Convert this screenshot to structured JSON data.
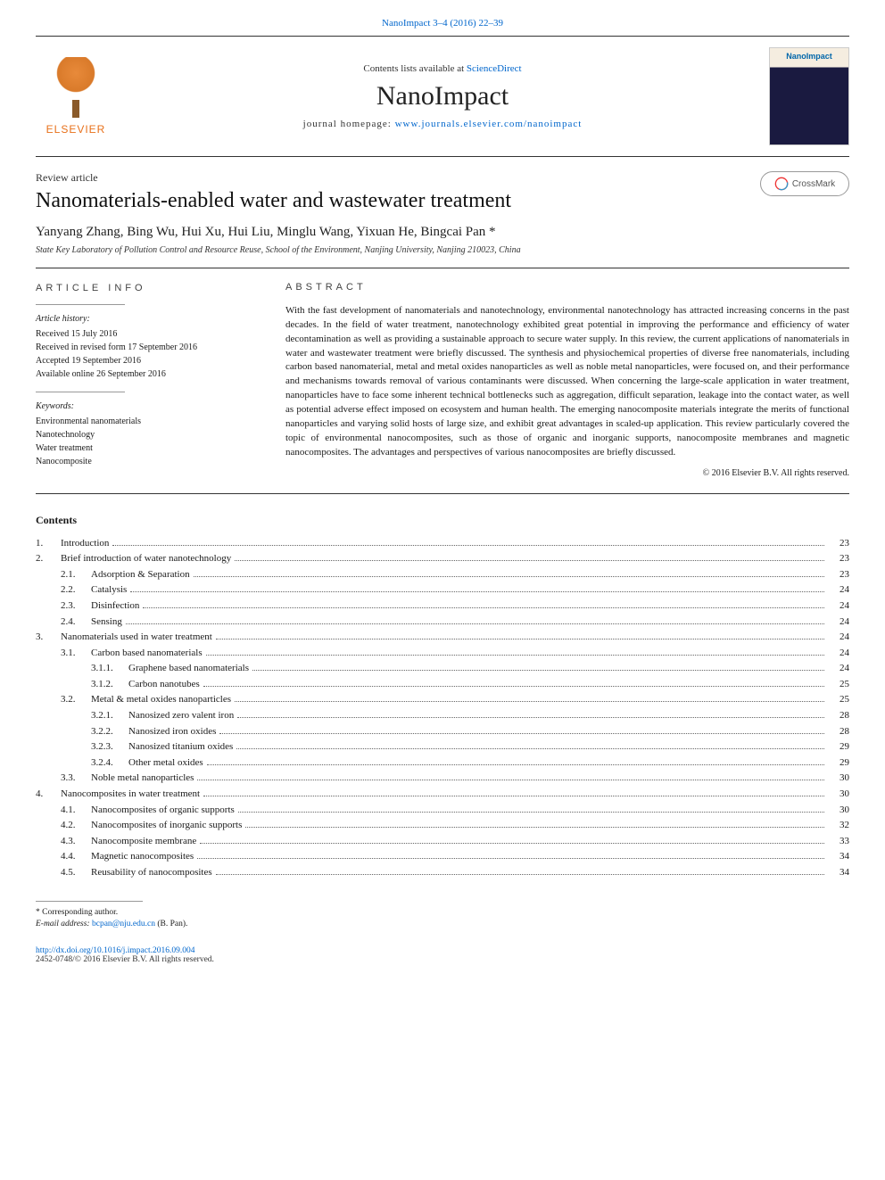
{
  "header": {
    "running_head": "NanoImpact 3–4 (2016) 22–39",
    "contents_line_prefix": "Contents lists available at ",
    "contents_line_link": "ScienceDirect",
    "journal_title": "NanoImpact",
    "homepage_prefix": "journal homepage: ",
    "homepage_url": "www.journals.elsevier.com/nanoimpact",
    "publisher_name": "ELSEVIER",
    "cover_label": "NanoImpact"
  },
  "article": {
    "type": "Review article",
    "title": "Nanomaterials-enabled water and wastewater treatment",
    "authors": "Yanyang Zhang, Bing Wu, Hui Xu, Hui Liu, Minglu Wang, Yixuan He, Bingcai Pan *",
    "affiliation": "State Key Laboratory of Pollution Control and Resource Reuse, School of the Environment, Nanjing University, Nanjing 210023, China",
    "crossmark_label": "CrossMark"
  },
  "article_info": {
    "heading": "ARTICLE INFO",
    "history_label": "Article history:",
    "history_lines": [
      "Received 15 July 2016",
      "Received in revised form 17 September 2016",
      "Accepted 19 September 2016",
      "Available online 26 September 2016"
    ],
    "keywords_label": "Keywords:",
    "keywords": [
      "Environmental nanomaterials",
      "Nanotechnology",
      "Water treatment",
      "Nanocomposite"
    ]
  },
  "abstract": {
    "heading": "ABSTRACT",
    "text": "With the fast development of nanomaterials and nanotechnology, environmental nanotechnology has attracted increasing concerns in the past decades. In the field of water treatment, nanotechnology exhibited great potential in improving the performance and efficiency of water decontamination as well as providing a sustainable approach to secure water supply. In this review, the current applications of nanomaterials in water and wastewater treatment were briefly discussed. The synthesis and physiochemical properties of diverse free nanomaterials, including carbon based nanomaterial, metal and metal oxides nanoparticles as well as noble metal nanoparticles, were focused on, and their performance and mechanisms towards removal of various contaminants were discussed. When concerning the large-scale application in water treatment, nanoparticles have to face some inherent technical bottlenecks such as aggregation, difficult separation, leakage into the contact water, as well as potential adverse effect imposed on ecosystem and human health. The emerging nanocomposite materials integrate the merits of functional nanoparticles and varying solid hosts of large size, and exhibit great advantages in scaled-up application. This review particularly covered the topic of environmental nanocomposites, such as those of organic and inorganic supports, nanocomposite membranes and magnetic nanocomposites. The advantages and perspectives of various nanocomposites are briefly discussed.",
    "copyright": "© 2016 Elsevier B.V. All rights reserved."
  },
  "contents": {
    "heading": "Contents",
    "items": [
      {
        "level": 1,
        "num": "1.",
        "title": "Introduction",
        "page": "23"
      },
      {
        "level": 1,
        "num": "2.",
        "title": "Brief introduction of water nanotechnology",
        "page": "23"
      },
      {
        "level": 2,
        "num": "2.1.",
        "title": "Adsorption & Separation",
        "page": "23"
      },
      {
        "level": 2,
        "num": "2.2.",
        "title": "Catalysis",
        "page": "24"
      },
      {
        "level": 2,
        "num": "2.3.",
        "title": "Disinfection",
        "page": "24"
      },
      {
        "level": 2,
        "num": "2.4.",
        "title": "Sensing",
        "page": "24"
      },
      {
        "level": 1,
        "num": "3.",
        "title": "Nanomaterials used in water treatment",
        "page": "24"
      },
      {
        "level": 2,
        "num": "3.1.",
        "title": "Carbon based nanomaterials",
        "page": "24"
      },
      {
        "level": 3,
        "num": "3.1.1.",
        "title": "Graphene based nanomaterials",
        "page": "24"
      },
      {
        "level": 3,
        "num": "3.1.2.",
        "title": "Carbon nanotubes",
        "page": "25"
      },
      {
        "level": 2,
        "num": "3.2.",
        "title": "Metal & metal oxides nanoparticles",
        "page": "25"
      },
      {
        "level": 3,
        "num": "3.2.1.",
        "title": "Nanosized zero valent iron",
        "page": "28"
      },
      {
        "level": 3,
        "num": "3.2.2.",
        "title": "Nanosized iron oxides",
        "page": "28"
      },
      {
        "level": 3,
        "num": "3.2.3.",
        "title": "Nanosized titanium oxides",
        "page": "29"
      },
      {
        "level": 3,
        "num": "3.2.4.",
        "title": "Other metal oxides",
        "page": "29"
      },
      {
        "level": 2,
        "num": "3.3.",
        "title": "Noble metal nanoparticles",
        "page": "30"
      },
      {
        "level": 1,
        "num": "4.",
        "title": "Nanocomposites in water treatment",
        "page": "30"
      },
      {
        "level": 2,
        "num": "4.1.",
        "title": "Nanocomposites of organic supports",
        "page": "30"
      },
      {
        "level": 2,
        "num": "4.2.",
        "title": "Nanocomposites of inorganic supports",
        "page": "32"
      },
      {
        "level": 2,
        "num": "4.3.",
        "title": "Nanocomposite membrane",
        "page": "33"
      },
      {
        "level": 2,
        "num": "4.4.",
        "title": "Magnetic nanocomposites",
        "page": "34"
      },
      {
        "level": 2,
        "num": "4.5.",
        "title": "Reusability of nanocomposites",
        "page": "34"
      }
    ]
  },
  "footnote": {
    "corresponding": "* Corresponding author.",
    "email_label": "E-mail address:",
    "email": "bcpan@nju.edu.cn",
    "email_owner": "(B. Pan)."
  },
  "doi": {
    "url": "http://dx.doi.org/10.1016/j.impact.2016.09.004",
    "issn_line": "2452-0748/© 2016 Elsevier B.V. All rights reserved."
  },
  "style": {
    "link_color": "#0066cc",
    "text_color": "#1a1a1a",
    "rule_color": "#333333",
    "background": "#ffffff",
    "journal_title_fontsize": 30,
    "article_title_fontsize": 24,
    "body_fontsize": 12,
    "abstract_fontsize": 11,
    "toc_fontsize": 11,
    "footnote_fontsize": 9.5
  }
}
